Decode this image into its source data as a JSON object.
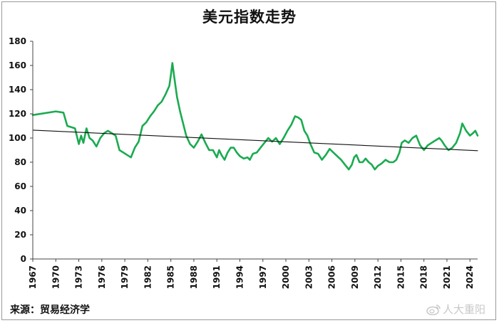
{
  "chart_data": {
    "type": "line",
    "title": "美元指数走势",
    "xlabel": "",
    "ylabel": "",
    "xlim": [
      1967,
      2025
    ],
    "ylim": [
      0,
      180
    ],
    "yticks": [
      0,
      20,
      40,
      60,
      80,
      100,
      120,
      140,
      160,
      180
    ],
    "xticks": [
      1967,
      1970,
      1973,
      1976,
      1979,
      1982,
      1985,
      1988,
      1991,
      1994,
      1997,
      2000,
      2003,
      2006,
      2009,
      2012,
      2015,
      2018,
      2021,
      2024
    ],
    "grid": false,
    "legend": "none",
    "series": [
      {
        "color": "#1aab50",
        "x": [
          1967.0,
          1970.0,
          1971.0,
          1971.5,
          1972.5,
          1973.0,
          1973.3,
          1973.6,
          1974.0,
          1974.4,
          1974.8,
          1975.3,
          1975.8,
          1976.3,
          1976.8,
          1977.3,
          1977.8,
          1978.3,
          1978.8,
          1979.3,
          1979.8,
          1980.3,
          1980.8,
          1981.3,
          1981.8,
          1982.3,
          1982.8,
          1983.3,
          1983.8,
          1984.3,
          1984.8,
          1985.0,
          1985.2,
          1985.5,
          1985.8,
          1986.2,
          1986.6,
          1987.0,
          1987.5,
          1988.0,
          1988.5,
          1989.0,
          1989.5,
          1990.0,
          1990.5,
          1991.0,
          1991.3,
          1991.6,
          1992.0,
          1992.4,
          1992.8,
          1993.2,
          1993.6,
          1994.0,
          1994.5,
          1995.0,
          1995.3,
          1995.7,
          1996.2,
          1996.7,
          1997.2,
          1997.7,
          1998.2,
          1998.7,
          1999.2,
          1999.7,
          2000.2,
          2000.7,
          2001.2,
          2001.6,
          2002.0,
          2002.4,
          2002.8,
          2003.2,
          2003.7,
          2004.2,
          2004.7,
          2005.2,
          2005.7,
          2006.2,
          2006.7,
          2007.2,
          2007.7,
          2008.2,
          2008.6,
          2008.9,
          2009.2,
          2009.6,
          2010.0,
          2010.4,
          2010.8,
          2011.2,
          2011.6,
          2012.0,
          2012.5,
          2013.0,
          2013.5,
          2014.0,
          2014.4,
          2014.8,
          2015.1,
          2015.5,
          2016.0,
          2016.5,
          2017.0,
          2017.5,
          2018.0,
          2018.5,
          2019.0,
          2019.5,
          2020.0,
          2020.3,
          2020.7,
          2021.2,
          2021.7,
          2022.2,
          2022.7,
          2023.0,
          2023.5,
          2024.0,
          2024.4,
          2024.7,
          2025.0
        ],
        "y": [
          119,
          122,
          121,
          110,
          108,
          95,
          102,
          96,
          108,
          100,
          98,
          93,
          100,
          104,
          106,
          104,
          102,
          90,
          88,
          86,
          84,
          92,
          97,
          110,
          113,
          118,
          122,
          127,
          130,
          136,
          143,
          152,
          162,
          148,
          134,
          122,
          112,
          102,
          95,
          92,
          97,
          103,
          96,
          90,
          90,
          84,
          90,
          86,
          82,
          88,
          92,
          92,
          88,
          85,
          83,
          84,
          82,
          87,
          88,
          92,
          96,
          100,
          97,
          100,
          95,
          100,
          106,
          111,
          118,
          117,
          115,
          106,
          102,
          95,
          88,
          87,
          82,
          86,
          91,
          88,
          85,
          82,
          78,
          74,
          78,
          84,
          86,
          80,
          80,
          83,
          80,
          78,
          74,
          77,
          79,
          82,
          80,
          80,
          82,
          88,
          96,
          98,
          96,
          100,
          102,
          94,
          90,
          94,
          96,
          98,
          100,
          98,
          94,
          90,
          92,
          96,
          104,
          112,
          106,
          102,
          104,
          106,
          102
        ]
      },
      {
        "color": "#111111",
        "x": [
          1967,
          2025
        ],
        "y": [
          106.5,
          89.5
        ]
      }
    ]
  },
  "footer": {
    "source": "来源：贸易经济学",
    "watermark": "人大重阳"
  }
}
